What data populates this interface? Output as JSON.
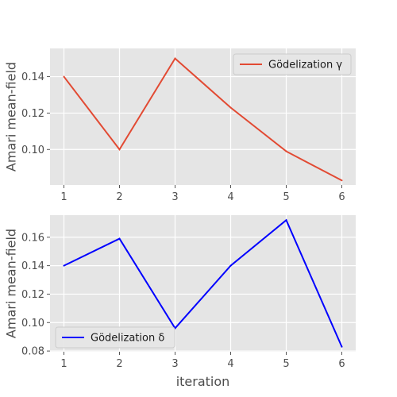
{
  "chart_data": [
    {
      "type": "line",
      "xlabel": "",
      "ylabel": "Amari mean-field",
      "x": [
        1,
        2,
        3,
        4,
        5,
        6
      ],
      "xticks": [
        "1",
        "2",
        "3",
        "4",
        "5",
        "6"
      ],
      "yticks": [
        "0.10",
        "0.12",
        "0.14"
      ],
      "ylim": [
        0.0805,
        0.1555
      ],
      "xlim": [
        0.75,
        6.25
      ],
      "grid": true,
      "legend_position": "upper right",
      "series": [
        {
          "name": "Gödelization γ",
          "color": "#e24a33",
          "values": [
            0.14,
            0.1,
            0.15,
            0.123,
            0.099,
            0.083
          ]
        }
      ]
    },
    {
      "type": "line",
      "xlabel": "iteration",
      "ylabel": "Amari mean-field",
      "x": [
        1,
        2,
        3,
        4,
        5,
        6
      ],
      "xticks": [
        "1",
        "2",
        "3",
        "4",
        "5",
        "6"
      ],
      "yticks": [
        "0.08",
        "0.10",
        "0.12",
        "0.14",
        "0.16"
      ],
      "ylim": [
        0.0795,
        0.1755
      ],
      "xlim": [
        0.75,
        6.25
      ],
      "grid": true,
      "legend_position": "lower left",
      "series": [
        {
          "name": "Gödelization δ",
          "color": "#0000ff",
          "values": [
            0.14,
            0.159,
            0.096,
            0.14,
            0.172,
            0.083
          ]
        }
      ]
    }
  ]
}
